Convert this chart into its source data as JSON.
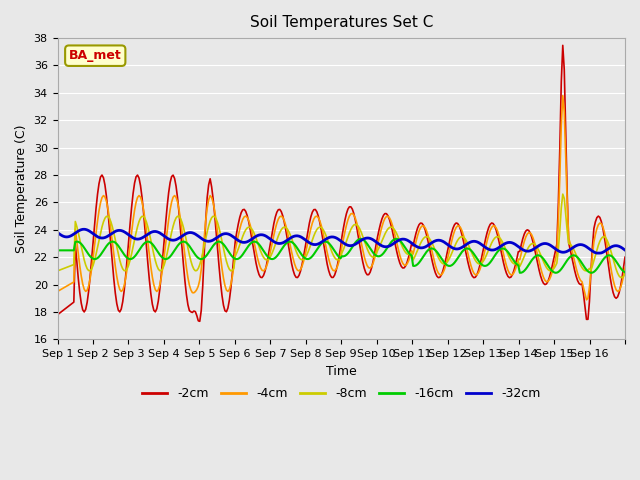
{
  "title": "Soil Temperatures Set C",
  "xlabel": "Time",
  "ylabel": "Soil Temperature (C)",
  "ylim": [
    16,
    38
  ],
  "yticks": [
    16,
    18,
    20,
    22,
    24,
    26,
    28,
    30,
    32,
    34,
    36,
    38
  ],
  "bg_color": "#e8e8e8",
  "colors": {
    "-2cm": "#cc0000",
    "-4cm": "#ff9900",
    "-8cm": "#cccc00",
    "-16cm": "#00cc00",
    "-32cm": "#0000cc"
  },
  "annotation_text": "BA_met",
  "annotation_color": "#cc0000",
  "annotation_bg": "#ffffcc",
  "annotation_border": "#999900",
  "xtick_positions": [
    0,
    1,
    2,
    3,
    4,
    5,
    6,
    7,
    8,
    9,
    10,
    11,
    12,
    13,
    14,
    15,
    16
  ],
  "xtick_labels": [
    "Sep 1",
    "Sep 2",
    "Sep 3",
    "Sep 4",
    "Sep 5",
    "Sep 6",
    "Sep 7",
    "Sep 8",
    "Sep 9",
    "Sep 10",
    "Sep 11",
    "Sep 12",
    "Sep 13",
    "Sep 14",
    "Sep 15",
    "Sep 16",
    ""
  ]
}
